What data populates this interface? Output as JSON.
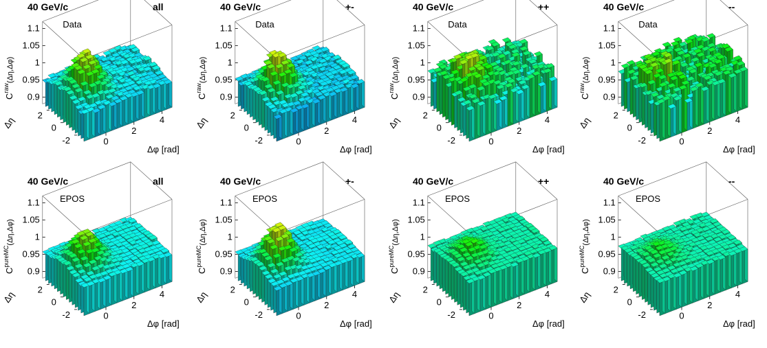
{
  "chart_data": [
    {
      "type": "bar",
      "chart_kind": "lego3d",
      "energy": "40 GeV/c",
      "charge": "all",
      "source": "Data",
      "zlabel_main": "C",
      "zlabel_sup": "raw",
      "zlabel_arg": "(Δη,Δφ)",
      "xlabel": "Δφ [rad]",
      "ylabel": "Δη",
      "zticks": [
        "0.9",
        "0.95",
        "1",
        "1.05",
        "1.1"
      ],
      "xticks": [
        "0",
        "2",
        "4"
      ],
      "yticks": [
        "-2",
        "0",
        "2"
      ],
      "zlim": [
        0.88,
        1.12
      ],
      "xlim": [
        -1.57,
        4.71
      ],
      "ylim": [
        -3.0,
        3.0
      ],
      "near_side_peak": 1.06,
      "baseline": 0.955,
      "noise": 0.006
    },
    {
      "type": "bar",
      "chart_kind": "lego3d",
      "energy": "40 GeV/c",
      "charge": "+-",
      "source": "Data",
      "zlabel_main": "C",
      "zlabel_sup": "raw",
      "zlabel_arg": "(Δη,Δφ)",
      "xlabel": "Δφ [rad]",
      "ylabel": "Δη",
      "zticks": [
        "0.9",
        "0.95",
        "1",
        "1.05",
        "1.1"
      ],
      "xticks": [
        "0",
        "2",
        "4"
      ],
      "yticks": [
        "-2",
        "0",
        "2"
      ],
      "zlim": [
        0.88,
        1.12
      ],
      "xlim": [
        -1.57,
        4.71
      ],
      "ylim": [
        -3.0,
        3.0
      ],
      "near_side_peak": 1.065,
      "baseline": 0.95,
      "noise": 0.007
    },
    {
      "type": "bar",
      "chart_kind": "lego3d",
      "energy": "40 GeV/c",
      "charge": "++",
      "source": "Data",
      "zlabel_main": "C",
      "zlabel_sup": "raw",
      "zlabel_arg": "(Δη,Δφ)",
      "xlabel": "Δφ [rad]",
      "ylabel": "Δη",
      "zticks": [
        "0.9",
        "0.95",
        "1",
        "1.05",
        "1.1"
      ],
      "xticks": [
        "0",
        "2",
        "4"
      ],
      "yticks": [
        "-2",
        "0",
        "2"
      ],
      "zlim": [
        0.88,
        1.12
      ],
      "xlim": [
        -1.57,
        4.71
      ],
      "ylim": [
        -3.0,
        3.0
      ],
      "near_side_peak": 1.06,
      "baseline": 0.975,
      "noise": 0.02
    },
    {
      "type": "bar",
      "chart_kind": "lego3d",
      "energy": "40 GeV/c",
      "charge": "--",
      "source": "Data",
      "zlabel_main": "C",
      "zlabel_sup": "raw",
      "zlabel_arg": "(Δη,Δφ)",
      "xlabel": "Δφ [rad]",
      "ylabel": "Δη",
      "zticks": [
        "0.9",
        "0.95",
        "1",
        "1.05",
        "1.1"
      ],
      "xticks": [
        "0",
        "2",
        "4"
      ],
      "yticks": [
        "-2",
        "0",
        "2"
      ],
      "zlim": [
        0.88,
        1.12
      ],
      "xlim": [
        -1.57,
        4.71
      ],
      "ylim": [
        -3.0,
        3.0
      ],
      "near_side_peak": 1.03,
      "baseline": 0.985,
      "noise": 0.025
    },
    {
      "type": "bar",
      "chart_kind": "lego3d",
      "energy": "40 GeV/c",
      "charge": "all",
      "source": "EPOS",
      "zlabel_main": "C",
      "zlabel_sup": "pureMC",
      "zlabel_arg": "(Δη,Δφ)",
      "xlabel": "Δφ [rad]",
      "ylabel": "Δη",
      "zticks": [
        "0.9",
        "0.95",
        "1",
        "1.05",
        "1.1"
      ],
      "xticks": [
        "0",
        "2",
        "4"
      ],
      "yticks": [
        "-2",
        "0",
        "2"
      ],
      "zlim": [
        0.88,
        1.12
      ],
      "xlim": [
        -1.57,
        4.71
      ],
      "ylim": [
        -3.0,
        3.0
      ],
      "near_side_peak": 1.045,
      "baseline": 0.96,
      "noise": 0.003
    },
    {
      "type": "bar",
      "chart_kind": "lego3d",
      "energy": "40 GeV/c",
      "charge": "+-",
      "source": "EPOS",
      "zlabel_main": "C",
      "zlabel_sup": "pureMC",
      "zlabel_arg": "(Δη,Δφ)",
      "xlabel": "Δφ [rad]",
      "ylabel": "Δη",
      "zticks": [
        "0.9",
        "0.95",
        "1",
        "1.05",
        "1.1"
      ],
      "xticks": [
        "0",
        "2",
        "4"
      ],
      "yticks": [
        "-2",
        "0",
        "2"
      ],
      "zlim": [
        0.88,
        1.12
      ],
      "xlim": [
        -1.57,
        4.71
      ],
      "ylim": [
        -3.0,
        3.0
      ],
      "near_side_peak": 1.065,
      "baseline": 0.955,
      "noise": 0.003
    },
    {
      "type": "bar",
      "chart_kind": "lego3d",
      "energy": "40 GeV/c",
      "charge": "++",
      "source": "EPOS",
      "zlabel_main": "C",
      "zlabel_sup": "pureMC",
      "zlabel_arg": "(Δη,Δφ)",
      "xlabel": "Δφ [rad]",
      "ylabel": "Δη",
      "zticks": [
        "0.9",
        "0.95",
        "1",
        "1.05",
        "1.1"
      ],
      "xticks": [
        "0",
        "2",
        "4"
      ],
      "yticks": [
        "-2",
        "0",
        "2"
      ],
      "zlim": [
        0.88,
        1.12
      ],
      "xlim": [
        -1.57,
        4.71
      ],
      "ylim": [
        -3.0,
        3.0
      ],
      "near_side_peak": 1.02,
      "baseline": 0.975,
      "noise": 0.003
    },
    {
      "type": "bar",
      "chart_kind": "lego3d",
      "energy": "40 GeV/c",
      "charge": "--",
      "source": "EPOS",
      "zlabel_main": "C",
      "zlabel_sup": "pureMC",
      "zlabel_arg": "(Δη,Δφ)",
      "xlabel": "Δφ [rad]",
      "ylabel": "Δη",
      "zticks": [
        "0.9",
        "0.95",
        "1",
        "1.05",
        "1.1"
      ],
      "xticks": [
        "0",
        "2",
        "4"
      ],
      "yticks": [
        "-2",
        "0",
        "2"
      ],
      "zlim": [
        0.88,
        1.12
      ],
      "xlim": [
        -1.57,
        4.71
      ],
      "ylim": [
        -3.0,
        3.0
      ],
      "near_side_peak": 1.01,
      "baseline": 0.975,
      "noise": 0.003
    }
  ]
}
